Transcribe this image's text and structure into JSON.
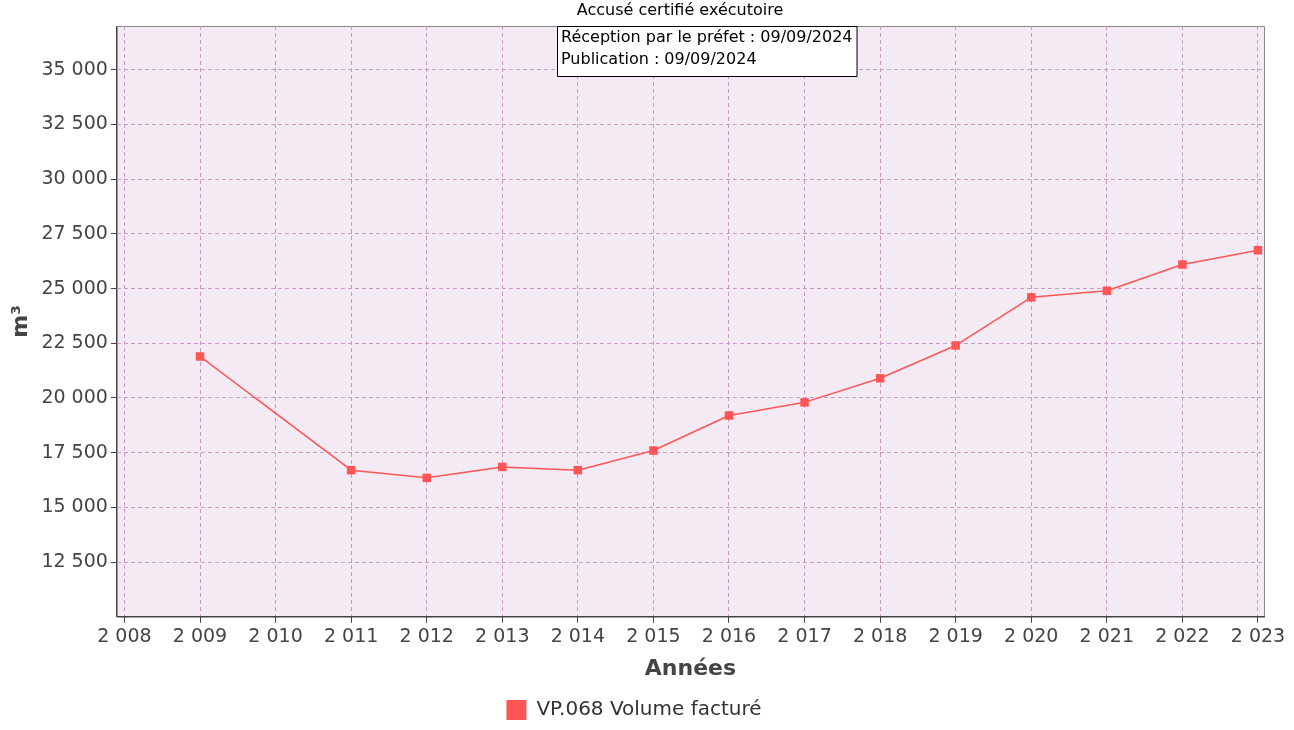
{
  "chart_data": {
    "type": "line",
    "xlabel": "Années",
    "ylabel": "m³",
    "annotations": [
      "Accusé certifié exécutoire",
      "Réception par le préfet : 09/09/2024\nPublication : 09/09/2024"
    ],
    "x": [
      2009,
      2011,
      2012,
      2013,
      2014,
      2015,
      2016,
      2017,
      2018,
      2019,
      2020,
      2021,
      2022,
      2023
    ],
    "series": [
      {
        "name": "VP.068 Volume facturé",
        "color": "#ff5555",
        "values": [
          21900,
          16700,
          16350,
          16850,
          16700,
          17600,
          19200,
          19800,
          20900,
          22400,
          24600,
          24900,
          26100,
          26750
        ]
      }
    ],
    "xlim": [
      2007.9,
      2023.08
    ],
    "xticks": [
      {
        "value": 2008,
        "label": "2 008"
      },
      {
        "value": 2009,
        "label": "2 009"
      },
      {
        "value": 2010,
        "label": "2 010"
      },
      {
        "value": 2011,
        "label": "2 011"
      },
      {
        "value": 2012,
        "label": "2 012"
      },
      {
        "value": 2013,
        "label": "2 013"
      },
      {
        "value": 2014,
        "label": "2 014"
      },
      {
        "value": 2015,
        "label": "2 015"
      },
      {
        "value": 2016,
        "label": "2 016"
      },
      {
        "value": 2017,
        "label": "2 017"
      },
      {
        "value": 2018,
        "label": "2 018"
      },
      {
        "value": 2019,
        "label": "2 019"
      },
      {
        "value": 2020,
        "label": "2 020"
      },
      {
        "value": 2021,
        "label": "2 021"
      },
      {
        "value": 2022,
        "label": "2 022"
      },
      {
        "value": 2023,
        "label": "2 023"
      }
    ],
    "ylim": [
      10000,
      37000
    ],
    "yticks": [
      {
        "value": 12500,
        "label": "12 500"
      },
      {
        "value": 15000,
        "label": "15 000"
      },
      {
        "value": 17500,
        "label": "17 500"
      },
      {
        "value": 20000,
        "label": "20 000"
      },
      {
        "value": 22500,
        "label": "22 500"
      },
      {
        "value": 25000,
        "label": "25 000"
      },
      {
        "value": 27500,
        "label": "27 500"
      },
      {
        "value": 30000,
        "label": "30 000"
      },
      {
        "value": 32500,
        "label": "32 500"
      },
      {
        "value": 35000,
        "label": "35 000"
      }
    ],
    "grid": true,
    "legend": "bottom",
    "marker": "square",
    "line_style": "solid"
  }
}
